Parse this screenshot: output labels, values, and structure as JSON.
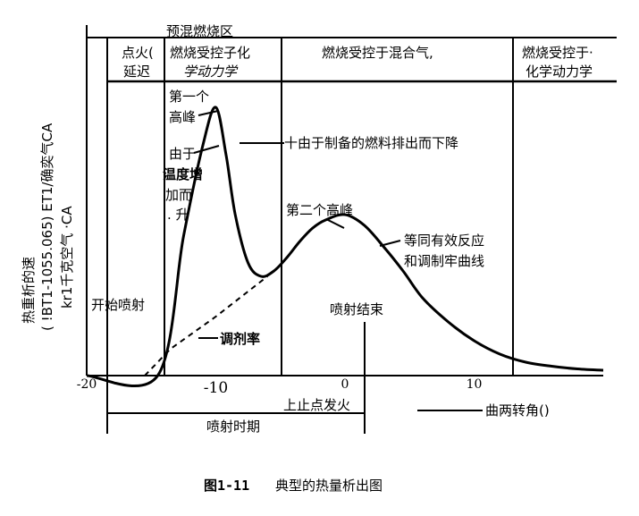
{
  "chart_data": {
    "type": "line",
    "title": "",
    "xlabel": "曲两转角()",
    "ylabel": "热重析的速",
    "ylabel_lines": [
      "( !BT1-1055.065) ET1/确奕气CA",
      "kr1千克空气 ·CA"
    ],
    "x_ticks": [
      {
        "value": -20,
        "label": "-20"
      },
      {
        "value": -10,
        "label": "-10"
      },
      {
        "value": 0,
        "label": "0"
      },
      {
        "value": 10,
        "label": "10"
      }
    ],
    "xlim": [
      -20,
      20
    ],
    "grid": false,
    "phases": [
      {
        "lines": [
          "点火(",
          "延迟"
        ]
      },
      {
        "lines": [
          "燃烧受控子化",
          "学动力学"
        ]
      },
      {
        "lines": [
          "燃烧受控于混合气,"
        ]
      },
      {
        "lines": [
          "燃烧受控于·",
          "化学动力学"
        ]
      }
    ],
    "premix_label": "预混燃烧区",
    "series": [
      {
        "style": "solid",
        "x": [
          -20,
          -14.5,
          -12.5,
          -11,
          -10,
          -9.2,
          -8.5,
          -7.5,
          -6.5,
          -5.5,
          -4.5,
          -3.5,
          -2.5,
          -1.5,
          0,
          1.5,
          3,
          4.5,
          6,
          8,
          10,
          12,
          14,
          16,
          18,
          20
        ],
        "y": [
          0,
          0,
          0.52,
          0.86,
          1.0,
          0.82,
          0.6,
          0.42,
          0.37,
          0.39,
          0.44,
          0.5,
          0.55,
          0.58,
          0.6,
          0.56,
          0.48,
          0.39,
          0.29,
          0.2,
          0.13,
          0.08,
          0.05,
          0.035,
          0.025,
          0.02
        ]
      },
      {
        "style": "dashed",
        "x": [
          -15.5,
          -13.5,
          -10,
          -6
        ],
        "y": [
          0,
          0.1,
          0.22,
          0.37
        ]
      }
    ],
    "markers": [
      {
        "label": "开始喷射"
      },
      {
        "label": "喷射结束"
      },
      {
        "label": "上止点发火"
      }
    ],
    "annotations": {
      "first_peak": [
        "第一个",
        "高峰"
      ],
      "temp_rise": [
        "由于",
        "温度增",
        "加而",
        ". 升"
      ],
      "fuel_drop": "十由于制备的燃料排出而下降",
      "second_peak": "第二个高峰",
      "equivalent": [
        "等同有效反应",
        "和调制牢曲线"
      ],
      "injection_rate": "调剂率",
      "injection_period": "喷射时期"
    }
  },
  "caption": {
    "fig_no": "图1-11",
    "text": "典型的热量析出图"
  }
}
